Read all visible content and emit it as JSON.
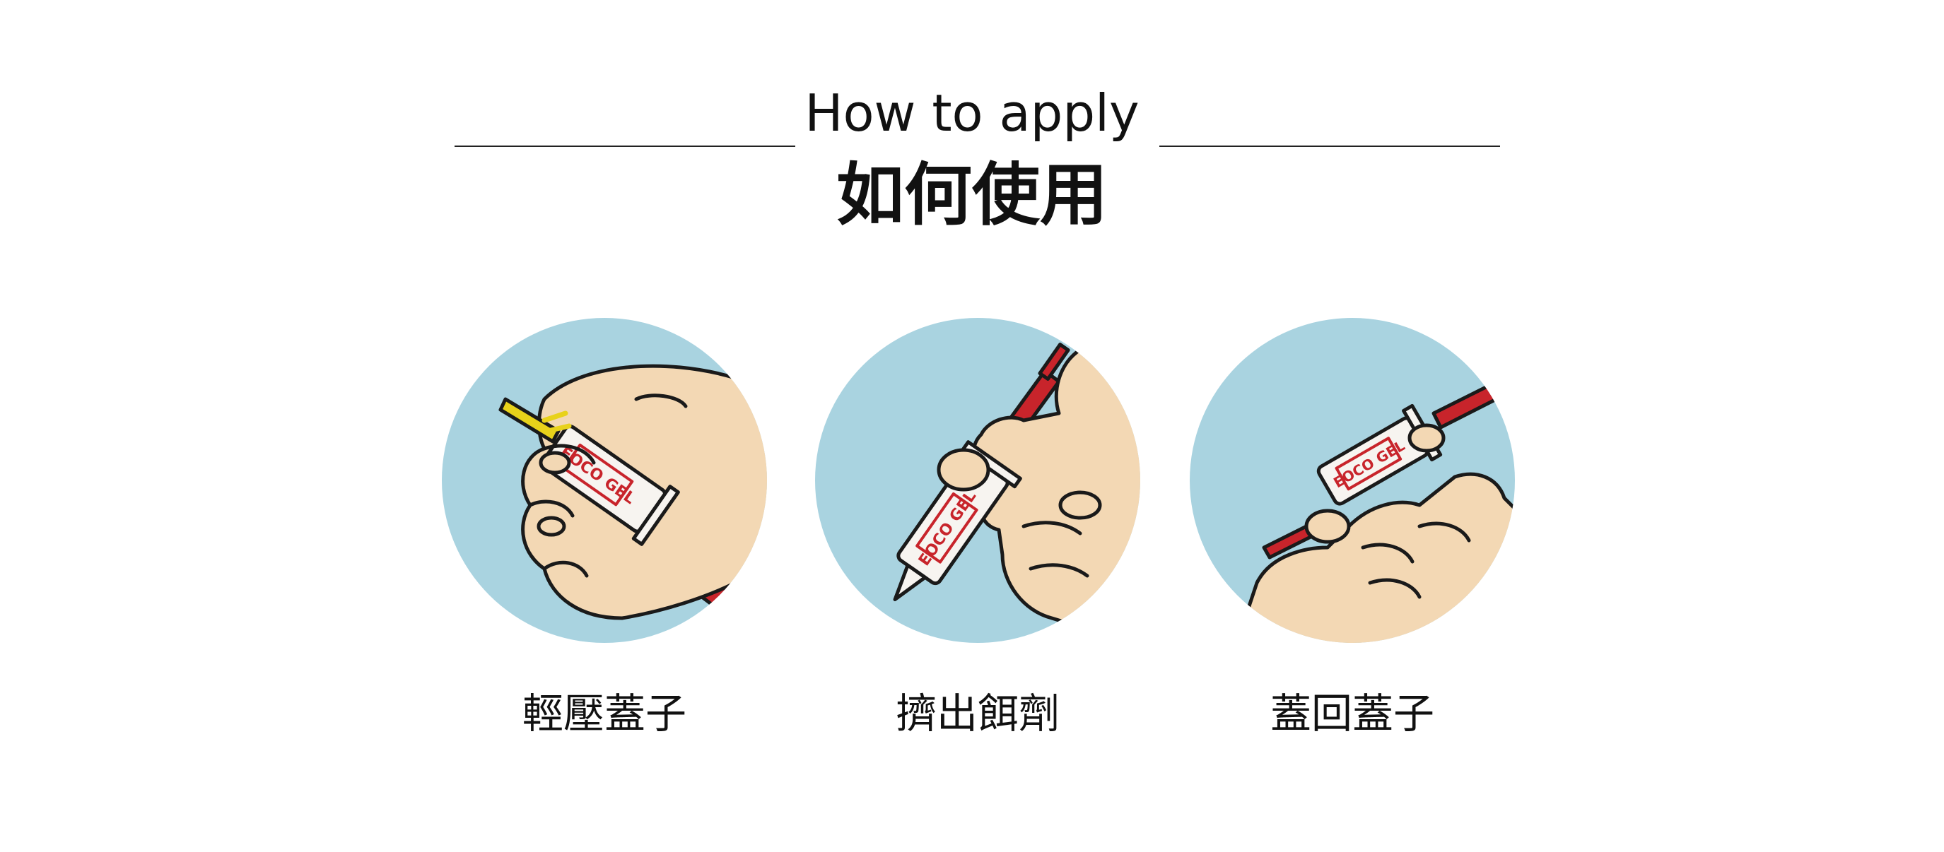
{
  "header": {
    "title_en": "How to apply",
    "title_zh": "如何使用"
  },
  "steps": [
    {
      "label": "輕壓蓋子",
      "icon": "hand-pressing-cap-illustration"
    },
    {
      "label": "擠出餌劑",
      "icon": "hand-squeezing-syringe-illustration"
    },
    {
      "label": "蓋回蓋子",
      "icon": "hand-recapping-syringe-illustration"
    }
  ],
  "colors": {
    "circle_bg": "#a9d3e0",
    "skin": "#f3d8b4",
    "outline": "#1a1a1a",
    "plunger_red": "#c8242b",
    "cap_yellow": "#e8d21a",
    "tube_white": "#f7f4f0"
  },
  "product_logo": "EOCO GEL"
}
